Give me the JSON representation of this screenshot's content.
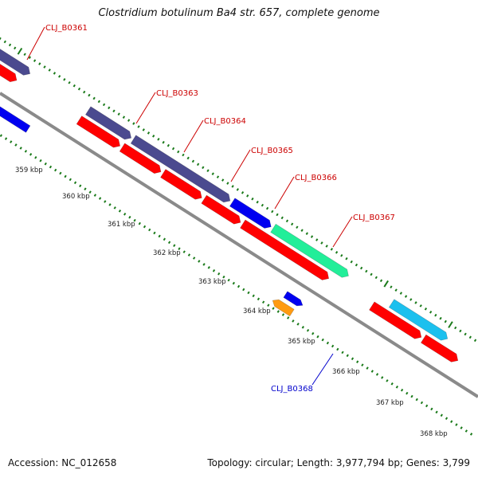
{
  "title": "Clostridium botulinum Ba4 str. 657, complete genome",
  "footer": {
    "accession": "Accession: NC_012658",
    "topology": "Topology: circular; Length: 3,977,794 bp; Genes: 3,799"
  },
  "colors": {
    "backbone": "#8a8a8a",
    "cds_forward": "#ff0000",
    "gene_purple": "#4b4a8f",
    "gene_blue": "#0000f0",
    "gene_green": "#22ee99",
    "gene_cyan": "#1cc0ee",
    "gene_orange": "#ff9b12",
    "tick": "#1a7a1a",
    "label_red": "#cc0000",
    "label_blue": "#0000cc"
  },
  "genes": [
    {
      "id": "CLJ_B0361",
      "strand": "forward",
      "color": "gene_purple",
      "start": 0.0,
      "end": 0.9
    },
    {
      "id": "CLJ_B0363",
      "strand": "forward",
      "color": "gene_purple",
      "start": 2.25,
      "end": 3.25
    },
    {
      "id": "CLJ_B0364",
      "strand": "forward",
      "color": "gene_purple",
      "start": 3.3,
      "end": 5.55
    },
    {
      "id": "CLJ_B0365",
      "strand": "forward",
      "color": "gene_blue",
      "start": 5.6,
      "end": 6.5
    },
    {
      "id": "CLJ_B0366",
      "strand": "forward",
      "color": "gene_green",
      "start": 6.55,
      "end": 8.3
    },
    {
      "id": "CLJ_B0367",
      "strand": "forward",
      "color": "gene_cyan",
      "start": 9.3,
      "end": 10.6
    },
    {
      "id": "CLJ_B0368",
      "strand": "reverse",
      "color": "gene_orange",
      "start": 7.3,
      "end": 7.75
    }
  ],
  "callouts": [
    {
      "text": "CLJ_B0361",
      "color": "label_red"
    },
    {
      "text": "CLJ_B0363",
      "color": "label_red"
    },
    {
      "text": "CLJ_B0364",
      "color": "label_red"
    },
    {
      "text": "CLJ_B0365",
      "color": "label_red"
    },
    {
      "text": "CLJ_B0366",
      "color": "label_red"
    },
    {
      "text": "CLJ_B0367",
      "color": "label_red"
    },
    {
      "text": "CLJ_B0368",
      "color": "label_blue"
    }
  ],
  "kbp_labels": [
    "359 kbp",
    "360 kbp",
    "361 kbp",
    "362 kbp",
    "363 kbp",
    "364 kbp",
    "365 kbp",
    "366 kbp",
    "367 kbp",
    "368 kbp"
  ]
}
